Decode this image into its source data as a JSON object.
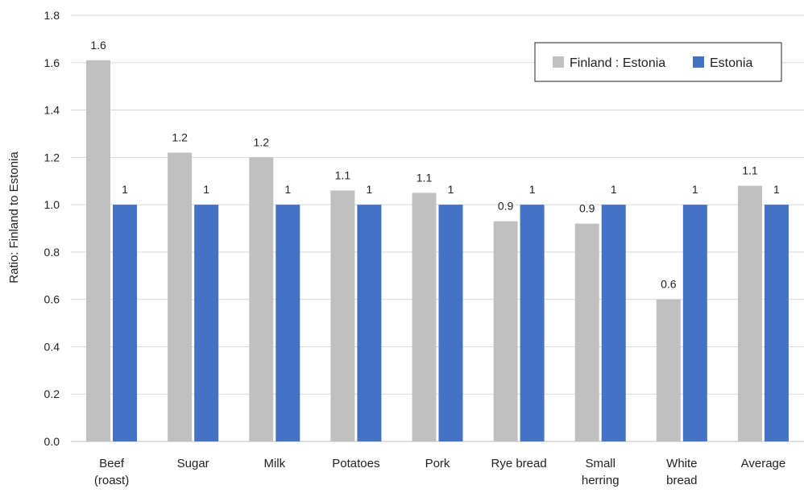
{
  "chart_data": {
    "type": "bar",
    "ylabel": "Ratio: Finland to Estonia",
    "xlabel": "",
    "ylim": [
      0,
      1.8
    ],
    "yticks": [
      "0.0",
      "0.2",
      "0.4",
      "0.6",
      "0.8",
      "1.0",
      "1.2",
      "1.4",
      "1.6",
      "1.8"
    ],
    "categories": [
      [
        "Beef",
        "(roast)"
      ],
      [
        "Sugar"
      ],
      [
        "Milk"
      ],
      [
        "Potatoes"
      ],
      [
        "Pork"
      ],
      [
        "Rye bread"
      ],
      [
        "Small",
        "herring"
      ],
      [
        "White",
        "bread"
      ],
      [
        "Average"
      ]
    ],
    "series": [
      {
        "name": "Finland : Estonia",
        "color": "#c0c0c0",
        "values": [
          1.61,
          1.22,
          1.2,
          1.06,
          1.05,
          0.93,
          0.92,
          0.6,
          1.08
        ],
        "labels": [
          "1.6",
          "1.2",
          "1.2",
          "1.1",
          "1.1",
          "0.9",
          "0.9",
          "0.6",
          "1.1"
        ]
      },
      {
        "name": "Estonia",
        "color": "#4472c4",
        "values": [
          1,
          1,
          1,
          1,
          1,
          1,
          1,
          1,
          1
        ],
        "labels": [
          "1",
          "1",
          "1",
          "1",
          "1",
          "1",
          "1",
          "1",
          "1"
        ]
      }
    ],
    "legend_position": "top-right",
    "grid": true
  }
}
